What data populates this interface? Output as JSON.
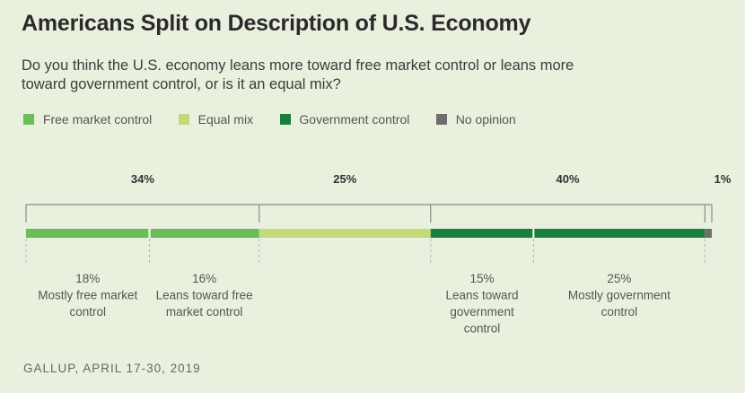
{
  "title": "Americans Split on Description of U.S. Economy",
  "subtitle": "Do you think the U.S. economy leans more toward free market control or leans more toward government control, or is it an equal mix?",
  "source": "GALLUP, APRIL 17-30, 2019",
  "legend": [
    {
      "label": "Free market control",
      "color": "#6abe57"
    },
    {
      "label": "Equal mix",
      "color": "#c3da7a"
    },
    {
      "label": "Government control",
      "color": "#17803e"
    },
    {
      "label": "No opinion",
      "color": "#6e6e6e"
    }
  ],
  "chart_data": {
    "type": "bar",
    "orientation": "horizontal-stacked",
    "grid": false,
    "legend_placement": "top-left",
    "xlim": [
      0,
      100
    ],
    "groups": [
      {
        "label": "34%",
        "value": 34,
        "name": "Free market control"
      },
      {
        "label": "25%",
        "value": 25,
        "name": "Equal mix"
      },
      {
        "label": "40%",
        "value": 40,
        "name": "Government control"
      },
      {
        "label": "1%",
        "value": 1,
        "name": "No opinion"
      }
    ],
    "segments": [
      {
        "group": 0,
        "value": 18,
        "pct_label": "18%",
        "label_lines": [
          "Mostly free market",
          "control"
        ],
        "color": "#6abe57"
      },
      {
        "group": 0,
        "value": 16,
        "pct_label": "16%",
        "label_lines": [
          "Leans toward free",
          "market control"
        ],
        "color": "#6abe57"
      },
      {
        "group": 1,
        "value": 25,
        "pct_label": "",
        "label_lines": [],
        "color": "#c3da7a"
      },
      {
        "group": 2,
        "value": 15,
        "pct_label": "15%",
        "label_lines": [
          "Leans toward",
          "government",
          "control"
        ],
        "color": "#17803e"
      },
      {
        "group": 2,
        "value": 25,
        "pct_label": "25%",
        "label_lines": [
          "Mostly government",
          "control"
        ],
        "color": "#17803e"
      },
      {
        "group": 3,
        "value": 1,
        "pct_label": "",
        "label_lines": [],
        "color": "#6e6e6e"
      }
    ]
  }
}
